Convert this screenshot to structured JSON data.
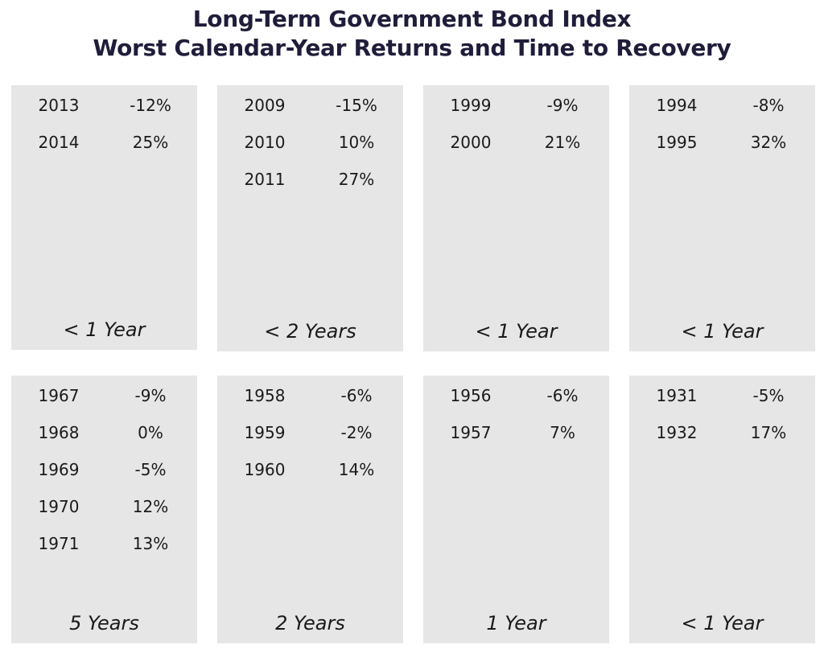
{
  "title": {
    "line1": "Long-Term Government Bond Index",
    "line2": "Worst Calendar-Year Returns and Time to Recovery"
  },
  "chart_data": {
    "type": "table",
    "title": "Long-Term Government Bond Index Worst Calendar-Year Returns and Time to Recovery",
    "panels": [
      {
        "rows": [
          {
            "year": "2013",
            "return": "-12%"
          },
          {
            "year": "2014",
            "return": "25%"
          }
        ],
        "recovery": "< 1 Year"
      },
      {
        "rows": [
          {
            "year": "2009",
            "return": "-15%"
          },
          {
            "year": "2010",
            "return": "10%"
          },
          {
            "year": "2011",
            "return": "27%"
          }
        ],
        "recovery": "< 2 Years"
      },
      {
        "rows": [
          {
            "year": "1999",
            "return": "-9%"
          },
          {
            "year": "2000",
            "return": "21%"
          }
        ],
        "recovery": "< 1 Year"
      },
      {
        "rows": [
          {
            "year": "1994",
            "return": "-8%"
          },
          {
            "year": "1995",
            "return": "32%"
          }
        ],
        "recovery": "< 1 Year"
      },
      {
        "rows": [
          {
            "year": "1967",
            "return": "-9%"
          },
          {
            "year": "1968",
            "return": "0%"
          },
          {
            "year": "1969",
            "return": "-5%"
          },
          {
            "year": "1970",
            "return": "12%"
          },
          {
            "year": "1971",
            "return": "13%"
          }
        ],
        "recovery": "5 Years"
      },
      {
        "rows": [
          {
            "year": "1958",
            "return": "-6%"
          },
          {
            "year": "1959",
            "return": "-2%"
          },
          {
            "year": "1960",
            "return": "14%"
          }
        ],
        "recovery": "2 Years"
      },
      {
        "rows": [
          {
            "year": "1956",
            "return": "-6%"
          },
          {
            "year": "1957",
            "return": "7%"
          }
        ],
        "recovery": "1 Year"
      },
      {
        "rows": [
          {
            "year": "1931",
            "return": "-5%"
          },
          {
            "year": "1932",
            "return": "17%"
          }
        ],
        "recovery": "< 1 Year"
      }
    ]
  },
  "colors": {
    "panel_background": "#e6e6e6",
    "title_text": "#1f1d3a",
    "body_text": "#1a1a1a"
  }
}
